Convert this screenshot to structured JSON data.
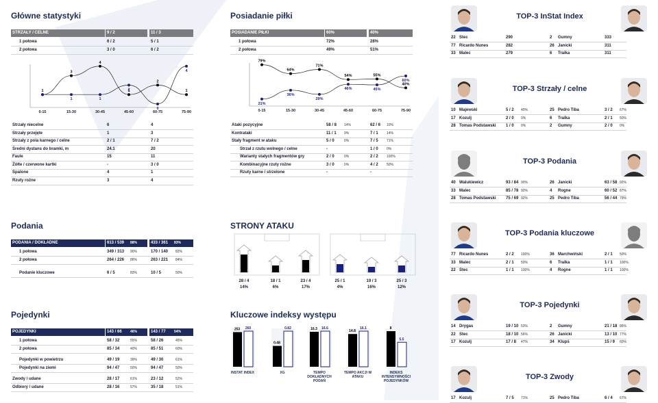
{
  "colors": {
    "navy": "#1c2a57",
    "dark_bar": "#000000",
    "blue_bar": "#1a1f7a",
    "grey_header": "#7a7b7f"
  },
  "main_stats": {
    "title": "Główne statystyki",
    "header": [
      "STRZAŁY / CELNE",
      "9 / 2",
      "11 / 3"
    ],
    "rows": [
      [
        "1 połowa",
        "6 / 2",
        "5 / 1"
      ],
      [
        "2 połowa",
        "3 / 0",
        "6 / 2"
      ]
    ],
    "chart_data": {
      "type": "line",
      "categories": [
        "0-15",
        "15-30",
        "30-45",
        "45-60",
        "60-75",
        "75-90"
      ],
      "series": [
        {
          "values": [
            1,
            3,
            4,
            1,
            2,
            1
          ]
        },
        {
          "values": [
            1,
            1,
            1,
            2,
            0,
            4
          ]
        }
      ],
      "labels_dark": [
        "1",
        "3",
        "4",
        "1",
        "2",
        "1"
      ],
      "labels_blue": [
        "",
        "1",
        "1",
        "2",
        "0",
        "4"
      ]
    },
    "rows2": [
      [
        "Strzały niecelne",
        "6",
        "4"
      ],
      [
        "Strzały przejęte",
        "1",
        "3"
      ],
      [
        "Strzały z pola karnego / celne",
        "2 / 1",
        "7 / 2"
      ],
      [
        "Średni dystans do bramki, m",
        "24.1",
        "20"
      ],
      [
        "Faule",
        "15",
        "11"
      ],
      [
        "Żółte / czerwone kartki",
        "-",
        "3 / 0"
      ],
      [
        "Spalone",
        "4",
        "1"
      ],
      [
        "Rzuty rożne",
        "3",
        "4"
      ]
    ]
  },
  "possession": {
    "title": "Posiadanie piłki",
    "header": [
      "POSIADANIE PIŁKI",
      "60%",
      "40%"
    ],
    "rows": [
      [
        "1 połowa",
        "72%",
        "28%"
      ],
      [
        "2 połowa",
        "49%",
        "51%"
      ]
    ],
    "chart_data": {
      "type": "line",
      "categories": [
        "0-15",
        "15-30",
        "30-45",
        "45-60",
        "60-75",
        "75-90"
      ],
      "series": [
        {
          "values": [
            79,
            64,
            71,
            54,
            55,
            40
          ]
        },
        {
          "values": [
            21,
            36,
            29,
            46,
            45,
            60
          ]
        }
      ],
      "labels_dark": [
        "79%",
        "64%",
        "71%",
        "54%",
        "55%",
        "40%"
      ],
      "labels_blue": [
        "21%",
        "36%",
        "29%",
        "46%",
        "45%",
        "60%"
      ]
    },
    "rows2": [
      [
        "Ataki pozycyjne",
        "58 / 8",
        "14%",
        "62 / 6",
        "10%"
      ],
      [
        "Kontrataki",
        "11 / 1",
        "9%",
        "7 / 1",
        "14%"
      ],
      [
        "Stały fragment w ataku",
        "5 / 0",
        "0%",
        "7 / 5",
        "71%"
      ],
      [
        "Strzał z rzutu wolnego / celne",
        "-",
        "",
        "1 / 0",
        "0%"
      ],
      [
        "Warianty stałych fragmentów gry",
        "2 / 0",
        "0%",
        "2 / 2",
        "100%"
      ],
      [
        "Kombinacyjne rzuty rożne",
        "3 / 0",
        "0%",
        "4 / 2",
        "50%"
      ],
      [
        "Rzuty karne / strzelone",
        "-",
        "",
        "-",
        ""
      ]
    ]
  },
  "passes": {
    "title": "Podania",
    "header": [
      "PODANIA / DOKŁADNE",
      "613 / 539",
      "88%",
      "433 / 361",
      "83%"
    ],
    "rows": [
      [
        "1 połowa",
        "349 / 313",
        "90%",
        "170 / 140",
        "82%"
      ],
      [
        "2 połowa",
        "264 / 226",
        "86%",
        "263 / 221",
        "84%"
      ],
      [
        "Podanie kluczowe",
        "6 / 5",
        "83%",
        "10 / 5",
        "50%"
      ]
    ]
  },
  "duels": {
    "title": "Pojedynki",
    "header": [
      "POJEDYNKI",
      "143 / 66",
      "46%",
      "143 / 77",
      "54%"
    ],
    "rows": [
      [
        "1 połowa",
        "58 / 32",
        "55%",
        "58 / 26",
        "45%"
      ],
      [
        "2 połowa",
        "85 / 34",
        "40%",
        "85 / 51",
        "60%"
      ],
      [
        "Pojedynki w powietrzu",
        "49 / 19",
        "39%",
        "49 / 30",
        "61%"
      ],
      [
        "Pojedynki na ziemi",
        "94 / 47",
        "50%",
        "94 / 47",
        "50%"
      ],
      [
        "Zwody / udane",
        "28 / 17",
        "61%",
        "23 / 12",
        "52%"
      ],
      [
        "Odbiory / udane",
        "28 / 16",
        "57%",
        "35 / 18",
        "51%"
      ]
    ]
  },
  "attack_sides": {
    "title": "STRONY ATAKU",
    "left": [
      [
        "28 / 4",
        "14%"
      ],
      [
        "18 / 1",
        "6%"
      ],
      [
        "23 / 4",
        "17%"
      ]
    ],
    "right": [
      [
        "25 / 1",
        "4%"
      ],
      [
        "19 / 3",
        "16%"
      ],
      [
        "25 / 3",
        "12%"
      ]
    ]
  },
  "key_indexes": {
    "title": "Kluczowe indeksy występu",
    "chart_data": {
      "type": "bar",
      "categories": [
        "INSTAT INDEX",
        "XG",
        "TEMPO DOKŁADNYCH PODAŃ",
        "TEMPO AKCJI W ATAKU",
        "INDEKS INTENSYWNOŚCI POJEDYNKÓW"
      ],
      "series": [
        {
          "values": [
            253,
            0.48,
            16.3,
            14.8,
            8
          ]
        },
        {
          "values": [
            260,
            0.82,
            16.6,
            16.1,
            5.5
          ]
        }
      ],
      "labels_a": [
        "253",
        "0.48",
        "16.3",
        "14.8",
        "8"
      ],
      "labels_b": [
        "260",
        "0.82",
        "16.6",
        "16.1",
        "5.5"
      ]
    }
  },
  "top": [
    {
      "title": "TOP-3 InStat Index",
      "left": [
        [
          "22",
          "Stec",
          "290"
        ],
        [
          "77",
          "Ricardo Nunes",
          "282"
        ],
        [
          "33",
          "Malec",
          "279"
        ]
      ],
      "right": [
        [
          "2",
          "Gumny",
          "333"
        ],
        [
          "26",
          "Janicki",
          "311"
        ],
        [
          "6",
          "Traïka",
          "311"
        ]
      ]
    },
    {
      "title": "TOP-3 Strzały / celne",
      "left": [
        [
          "10",
          "Majewski",
          "5 / 2",
          "40%"
        ],
        [
          "17",
          "Kozulj",
          "2 / 0",
          "0%"
        ],
        [
          "28",
          "Tomas Podstawski",
          "1 / 0",
          "0%"
        ]
      ],
      "right": [
        [
          "25",
          "Pedro Tiba",
          "3 / 2",
          "67%"
        ],
        [
          "6",
          "Traïka",
          "2 / 1",
          "50%"
        ],
        [
          "2",
          "Gumny",
          "2 / 0",
          "0%"
        ]
      ]
    },
    {
      "title": "TOP-3 Podania",
      "left": [
        [
          "40",
          "Walukiewicz",
          "93 / 84",
          "90%"
        ],
        [
          "33",
          "Malec",
          "85 / 78",
          "92%"
        ],
        [
          "28",
          "Tomas Podstawski",
          "75 / 69",
          "92%"
        ]
      ],
      "right": [
        [
          "26",
          "Janicki",
          "63 / 58",
          "92%"
        ],
        [
          "4",
          "Rogne",
          "60 / 52",
          "87%"
        ],
        [
          "25",
          "Pedro Tiba",
          "56 / 44",
          "79%"
        ]
      ]
    },
    {
      "title": "TOP-3 Podania kluczowe",
      "left": [
        [
          "77",
          "Ricardo Nunes",
          "2 / 2",
          "100%"
        ],
        [
          "33",
          "Malec",
          "2 / 1",
          "50%"
        ],
        [
          "22",
          "Stec",
          "1 / 1",
          "100%"
        ]
      ],
      "right": [
        [
          "36",
          "Marchwiński",
          "2 / 1",
          "50%"
        ],
        [
          "6",
          "Traïka",
          "1 / 1",
          "100%"
        ],
        [
          "4",
          "Rogne",
          "1 / 1",
          "100%"
        ]
      ]
    },
    {
      "title": "TOP-3 Pojedynki",
      "left": [
        [
          "14",
          "Drygas",
          "19 / 10",
          "53%"
        ],
        [
          "22",
          "Stec",
          "18 / 10",
          "56%"
        ],
        [
          "17",
          "Kozulj",
          "17 / 8",
          "47%"
        ]
      ],
      "right": [
        [
          "2",
          "Gumny",
          "21 / 18",
          "86%"
        ],
        [
          "26",
          "Janicki",
          "13 / 10",
          "77%"
        ],
        [
          "34",
          "Klupś",
          "15 / 9",
          "60%"
        ]
      ]
    },
    {
      "title": "TOP-3 Zwody",
      "left": [
        [
          "17",
          "Kozulj",
          "7 / 5",
          "71%"
        ]
      ],
      "right": [
        [
          "25",
          "Pedro Tiba",
          "6 / 4",
          "67%"
        ]
      ]
    }
  ]
}
